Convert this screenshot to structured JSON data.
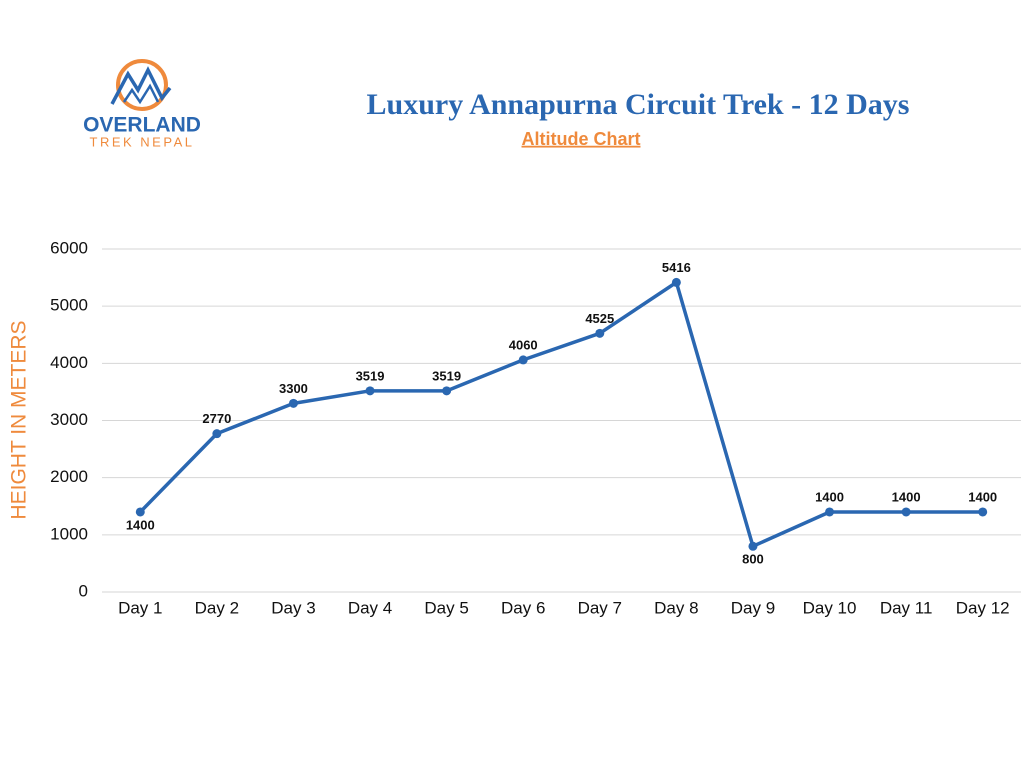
{
  "logo": {
    "name": "OVERLAND",
    "tagline": "TREK NEPAL"
  },
  "chart_data": {
    "type": "line",
    "title": "Luxury Annapurna Circuit Trek - 12 Days",
    "subtitle": "Altitude Chart",
    "y_label": "HEIGHT IN METERS",
    "categories": [
      "Day 1",
      "Day 2",
      "Day 3",
      "Day 4",
      "Day 5",
      "Day 6",
      "Day 7",
      "Day 8",
      "Day 9",
      "Day 10",
      "Day 11",
      "Day 12"
    ],
    "values": [
      1400,
      2770,
      3300,
      3519,
      3519,
      4060,
      4525,
      5416,
      800,
      1400,
      1400,
      1400
    ],
    "color": "#2a67b1",
    "ylim": [
      0,
      6000
    ],
    "yticks": [
      0,
      1000,
      2000,
      3000,
      4000,
      5000,
      6000
    ],
    "grid": true
  }
}
